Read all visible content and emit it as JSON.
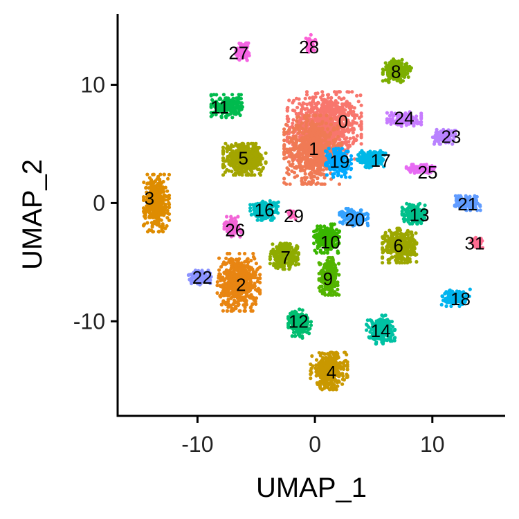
{
  "chart_data": {
    "type": "scatter",
    "xlabel": "UMAP_1",
    "ylabel": "UMAP_2",
    "xlim": [
      -16.8,
      16.2
    ],
    "ylim": [
      -18.0,
      16.0
    ],
    "xticks": [
      -10,
      0,
      10
    ],
    "yticks": [
      10,
      0,
      -10
    ],
    "xtick_labels": [
      "-10",
      "0",
      "10"
    ],
    "ytick_labels": [
      "10",
      "0",
      "-10"
    ],
    "grid": false,
    "legend": "none",
    "clusters": [
      {
        "label": "0",
        "x": 0.8,
        "y": 6.5,
        "sx": 2.6,
        "sy": 2.4,
        "color": "#F8766D",
        "n": 900
      },
      {
        "label": "1",
        "x": -0.2,
        "y": 4.5,
        "sx": 2.0,
        "sy": 2.4,
        "color": "#F07A55",
        "n": 650
      },
      {
        "label": "2",
        "x": -6.5,
        "y": -6.7,
        "sx": 1.5,
        "sy": 2.0,
        "color": "#E88512",
        "n": 550
      },
      {
        "label": "3",
        "x": -13.5,
        "y": 0.0,
        "sx": 0.9,
        "sy": 2.0,
        "color": "#DE8C00",
        "n": 380
      },
      {
        "label": "4",
        "x": 1.2,
        "y": -14.2,
        "sx": 1.3,
        "sy": 1.3,
        "color": "#C99800",
        "n": 380
      },
      {
        "label": "5",
        "x": -6.0,
        "y": 3.7,
        "sx": 1.5,
        "sy": 1.1,
        "color": "#A3A500",
        "n": 450
      },
      {
        "label": "6",
        "x": 7.2,
        "y": -3.6,
        "sx": 1.2,
        "sy": 1.2,
        "color": "#9CA700",
        "n": 380
      },
      {
        "label": "7",
        "x": -2.6,
        "y": -4.5,
        "sx": 1.0,
        "sy": 0.9,
        "color": "#8EAB00",
        "n": 260
      },
      {
        "label": "8",
        "x": 7.0,
        "y": 11.2,
        "sx": 1.0,
        "sy": 0.8,
        "color": "#7CAE00",
        "n": 220
      },
      {
        "label": "9",
        "x": 1.2,
        "y": -6.2,
        "sx": 0.7,
        "sy": 1.3,
        "color": "#53B400",
        "n": 260
      },
      {
        "label": "10",
        "x": 1.0,
        "y": -3.0,
        "sx": 0.9,
        "sy": 1.0,
        "color": "#39B600",
        "n": 260
      },
      {
        "label": "11",
        "x": -7.5,
        "y": 8.2,
        "sx": 1.1,
        "sy": 0.8,
        "color": "#00BB4E",
        "n": 220
      },
      {
        "label": "12",
        "x": -1.3,
        "y": -10.2,
        "sx": 0.8,
        "sy": 1.0,
        "color": "#00BE70",
        "n": 200
      },
      {
        "label": "13",
        "x": 8.4,
        "y": -0.9,
        "sx": 0.8,
        "sy": 0.7,
        "color": "#00C08B",
        "n": 180
      },
      {
        "label": "14",
        "x": 5.6,
        "y": -10.7,
        "sx": 1.0,
        "sy": 1.0,
        "color": "#00C1A3",
        "n": 220
      },
      {
        "label": "16",
        "x": -4.3,
        "y": -0.6,
        "sx": 1.0,
        "sy": 0.7,
        "color": "#00BFC4",
        "n": 200
      },
      {
        "label": "17",
        "x": 4.8,
        "y": 3.7,
        "sx": 1.0,
        "sy": 0.6,
        "color": "#00B8E7",
        "n": 200
      },
      {
        "label": "18",
        "x": 12.0,
        "y": -8.0,
        "sx": 1.0,
        "sy": 0.6,
        "color": "#00B4EF",
        "n": 150
      },
      {
        "label": "19",
        "x": 2.0,
        "y": 3.4,
        "sx": 0.9,
        "sy": 1.0,
        "color": "#00A9FF",
        "n": 220
      },
      {
        "label": "20",
        "x": 3.3,
        "y": -1.2,
        "sx": 1.0,
        "sy": 0.6,
        "color": "#35A2FF",
        "n": 160
      },
      {
        "label": "21",
        "x": 13.0,
        "y": 0.0,
        "sx": 0.9,
        "sy": 0.5,
        "color": "#619CFF",
        "n": 150
      },
      {
        "label": "22",
        "x": -9.8,
        "y": -6.3,
        "sx": 0.8,
        "sy": 0.5,
        "color": "#8B93FF",
        "n": 140
      },
      {
        "label": "23",
        "x": 11.0,
        "y": 5.6,
        "sx": 0.8,
        "sy": 0.5,
        "color": "#B983FF",
        "n": 120
      },
      {
        "label": "24",
        "x": 7.6,
        "y": 7.1,
        "sx": 1.2,
        "sy": 0.5,
        "color": "#C77CFF",
        "n": 140
      },
      {
        "label": "25",
        "x": 9.0,
        "y": 2.9,
        "sx": 1.0,
        "sy": 0.3,
        "color": "#E76BF3",
        "n": 120
      },
      {
        "label": "26",
        "x": -7.0,
        "y": -2.0,
        "sx": 0.6,
        "sy": 0.7,
        "color": "#F265D7",
        "n": 100
      },
      {
        "label": "27",
        "x": -6.1,
        "y": 12.8,
        "sx": 0.5,
        "sy": 0.6,
        "color": "#F564E3",
        "n": 90
      },
      {
        "label": "28",
        "x": -0.4,
        "y": 13.5,
        "sx": 0.4,
        "sy": 0.6,
        "color": "#FC61D5",
        "n": 70
      },
      {
        "label": "29",
        "x": -2.0,
        "y": -1.0,
        "sx": 0.3,
        "sy": 0.3,
        "color": "#FF62BC",
        "n": 15
      },
      {
        "label": "31",
        "x": 13.8,
        "y": -3.3,
        "sx": 0.4,
        "sy": 0.4,
        "color": "#FF6C91",
        "n": 60
      }
    ],
    "label_positions": [
      {
        "label": "0",
        "x": 2.4,
        "y": 6.9
      },
      {
        "label": "1",
        "x": -0.1,
        "y": 4.6
      },
      {
        "label": "2",
        "x": -6.3,
        "y": -6.9
      },
      {
        "label": "3",
        "x": -14.1,
        "y": 0.4
      },
      {
        "label": "4",
        "x": 1.4,
        "y": -14.3
      },
      {
        "label": "5",
        "x": -6.1,
        "y": 3.8
      },
      {
        "label": "6",
        "x": 7.1,
        "y": -3.6
      },
      {
        "label": "7",
        "x": -2.5,
        "y": -4.6
      },
      {
        "label": "8",
        "x": 6.9,
        "y": 11.1
      },
      {
        "label": "9",
        "x": 1.1,
        "y": -6.4
      },
      {
        "label": "10",
        "x": 1.3,
        "y": -3.3
      },
      {
        "label": "11",
        "x": -8.1,
        "y": 8.1
      },
      {
        "label": "12",
        "x": -1.4,
        "y": -10.0
      },
      {
        "label": "13",
        "x": 8.9,
        "y": -1.0
      },
      {
        "label": "14",
        "x": 5.6,
        "y": -10.8
      },
      {
        "label": "16",
        "x": -4.3,
        "y": -0.6
      },
      {
        "label": "17",
        "x": 5.6,
        "y": 3.6
      },
      {
        "label": "18",
        "x": 12.4,
        "y": -8.1
      },
      {
        "label": "19",
        "x": 2.1,
        "y": 3.5
      },
      {
        "label": "20",
        "x": 3.4,
        "y": -1.4
      },
      {
        "label": "21",
        "x": 13.0,
        "y": -0.1
      },
      {
        "label": "22",
        "x": -9.6,
        "y": -6.3
      },
      {
        "label": "23",
        "x": 11.6,
        "y": 5.6
      },
      {
        "label": "24",
        "x": 7.6,
        "y": 7.2
      },
      {
        "label": "25",
        "x": 9.6,
        "y": 2.6
      },
      {
        "label": "26",
        "x": -6.8,
        "y": -2.3
      },
      {
        "label": "27",
        "x": -6.5,
        "y": 12.7
      },
      {
        "label": "28",
        "x": -0.5,
        "y": 13.2
      },
      {
        "label": "29",
        "x": -1.8,
        "y": -1.1
      },
      {
        "label": "31",
        "x": 13.6,
        "y": -3.4
      }
    ]
  }
}
